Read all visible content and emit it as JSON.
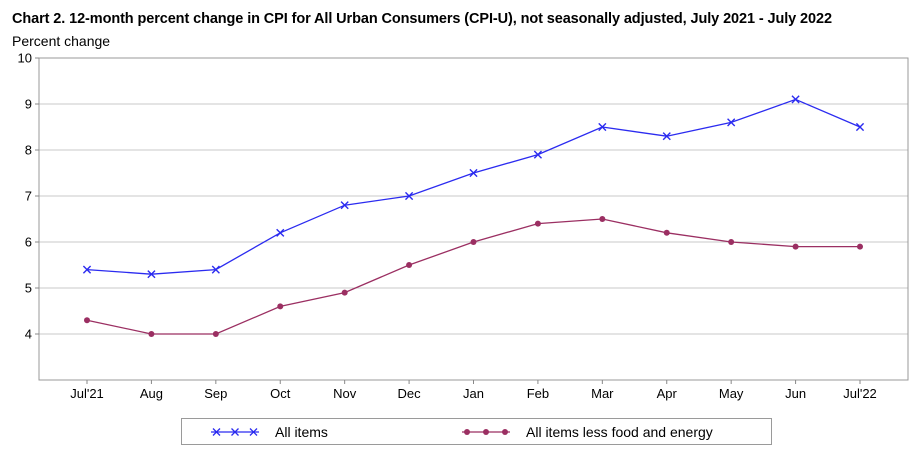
{
  "chart_data": {
    "type": "line",
    "title": "Chart 2. 12-month percent change in CPI for All Urban Consumers (CPI-U), not seasonally adjusted, July 2021 - July 2022",
    "ylabel": "Percent change",
    "xlabel": "",
    "ylim": [
      3,
      10
    ],
    "yticks": [
      "4",
      "5",
      "6",
      "7",
      "8",
      "9",
      "10"
    ],
    "grid": true,
    "legend_position": "bottom",
    "categories": [
      "Jul'21",
      "Aug",
      "Sep",
      "Oct",
      "Nov",
      "Dec",
      "Jan",
      "Feb",
      "Mar",
      "Apr",
      "May",
      "Jun",
      "Jul'22"
    ],
    "series": [
      {
        "name": "All items",
        "color": "#2b2bf0",
        "marker": "x",
        "values": [
          5.4,
          5.3,
          5.4,
          6.2,
          6.8,
          7.0,
          7.5,
          7.9,
          8.5,
          8.3,
          8.6,
          9.1,
          8.5
        ]
      },
      {
        "name": "All items less food and energy",
        "color": "#9b2f62",
        "marker": "dot",
        "values": [
          4.3,
          4.0,
          4.0,
          4.6,
          4.9,
          5.5,
          6.0,
          6.4,
          6.5,
          6.2,
          6.0,
          5.9,
          5.9
        ]
      }
    ]
  }
}
